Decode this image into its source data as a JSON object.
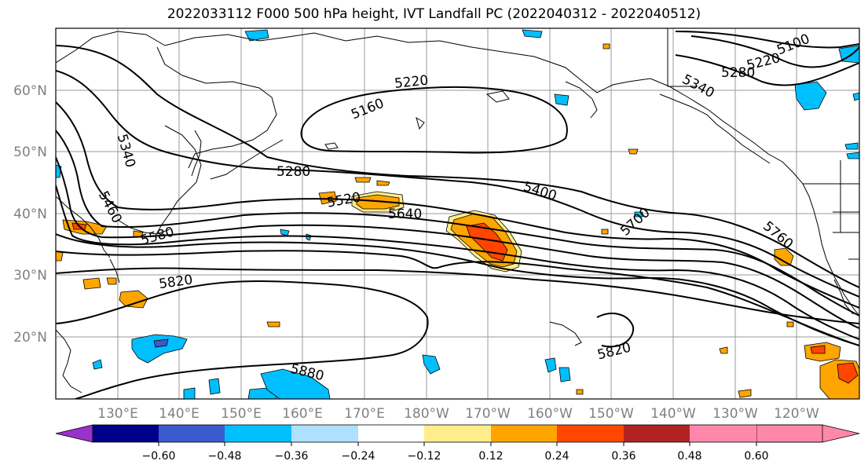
{
  "title": "2022033112 F000 500 hPa height, IVT Landfall PC (2022040312 - 2022040512)",
  "map": {
    "lat_labels": [
      "60°N",
      "50°N",
      "40°N",
      "30°N",
      "20°N"
    ],
    "lon_labels": [
      "130°E",
      "140°E",
      "150°E",
      "160°E",
      "170°E",
      "180°W",
      "170°W",
      "160°W",
      "150°W",
      "140°W",
      "130°W",
      "120°W"
    ],
    "contour_labels": [
      "5100",
      "5160",
      "5220",
      "5220",
      "5280",
      "5280",
      "5340",
      "5340",
      "5400",
      "5460",
      "5520",
      "5580",
      "5640",
      "5700",
      "5760",
      "5820",
      "5820",
      "5880"
    ]
  },
  "colorbar": {
    "tick_labels": [
      "−0.60",
      "−0.48",
      "−0.36",
      "−0.24",
      "−0.12",
      "0.12",
      "0.24",
      "0.36",
      "0.48",
      "0.60"
    ],
    "colors": [
      "#9932cc",
      "#00008b",
      "#3a5bcd",
      "#00bfff",
      "#afe0ff",
      "#ffffff",
      "#ffec8b",
      "#ffa500",
      "#ff4500",
      "#b22222",
      "#ff88aa"
    ]
  }
}
